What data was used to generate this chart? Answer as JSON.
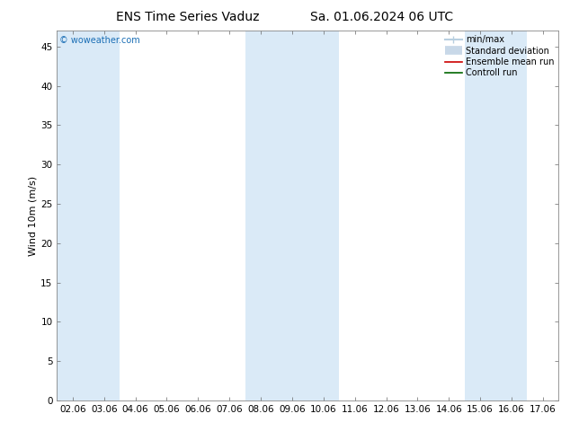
{
  "title_left": "ENS Time Series Vaduz",
  "title_right": "Sa. 01.06.2024 06 UTC",
  "ylabel": "Wind 10m (m/s)",
  "xlabel_ticks": [
    "02.06",
    "03.06",
    "04.06",
    "05.06",
    "06.06",
    "07.06",
    "08.06",
    "09.06",
    "10.06",
    "11.06",
    "12.06",
    "13.06",
    "14.06",
    "15.06",
    "16.06",
    "17.06"
  ],
  "ylim": [
    0,
    47
  ],
  "yticks": [
    0,
    5,
    10,
    15,
    20,
    25,
    30,
    35,
    40,
    45
  ],
  "bg_color": "#ffffff",
  "plot_bg_color": "#ffffff",
  "shaded_band_color": "#daeaf7",
  "shaded_columns_x": [
    0,
    1,
    6,
    7,
    8,
    13,
    14
  ],
  "copyright_text": "© woweather.com",
  "copyright_color": "#1a6eb5",
  "legend_items": [
    {
      "label": "min/max",
      "color": "#b8cfe0",
      "lw": 1.5,
      "style": "-"
    },
    {
      "label": "Standard deviation",
      "color": "#c8d8e8",
      "lw": 7,
      "style": "-"
    },
    {
      "label": "Ensemble mean run",
      "color": "#cc0000",
      "lw": 1.2,
      "style": "-"
    },
    {
      "label": "Controll run",
      "color": "#006600",
      "lw": 1.2,
      "style": "-"
    }
  ],
  "title_fontsize": 10,
  "axis_fontsize": 8,
  "tick_fontsize": 7.5,
  "legend_fontsize": 7,
  "copyright_fontsize": 7
}
